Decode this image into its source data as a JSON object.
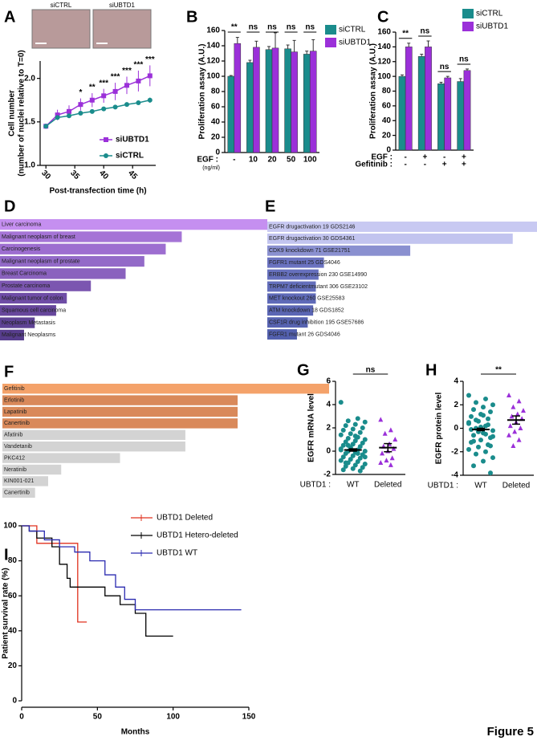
{
  "figure_label": "Figure 5",
  "chart_data": [
    {
      "type": "line",
      "panel": "A",
      "images": [
        "siCTRL",
        "siUBTD1"
      ],
      "y_label": [
        "Cell number",
        "(number of nuclei relative to T=0)"
      ],
      "x_label": "Post-transfection time (h)",
      "x": [
        30,
        32,
        34,
        36,
        38,
        40,
        42,
        44,
        46,
        48
      ],
      "xlim": [
        29,
        49
      ],
      "xticks": [
        30,
        35,
        40,
        45
      ],
      "ylim": [
        1.0,
        2.2
      ],
      "yticks": [
        {
          "value": 1.0,
          "label": "1.0"
        },
        {
          "value": 1.5,
          "label": "1.5"
        },
        {
          "value": 2.0,
          "label": "2.0"
        }
      ],
      "series": [
        {
          "name": "siUBTD1",
          "color": "#9b30d9",
          "marker": "square",
          "values": [
            1.45,
            1.58,
            1.62,
            1.7,
            1.75,
            1.8,
            1.85,
            1.92,
            1.97,
            2.03
          ],
          "errors": [
            0.03,
            0.06,
            0.07,
            0.07,
            0.08,
            0.08,
            0.1,
            0.1,
            0.12,
            0.12
          ],
          "significance": [
            null,
            null,
            null,
            "*",
            "**",
            "***",
            "***",
            "***",
            "***",
            "***"
          ]
        },
        {
          "name": "siCTRL",
          "color": "#1a8c8c",
          "marker": "circle",
          "values": [
            1.45,
            1.55,
            1.57,
            1.6,
            1.62,
            1.65,
            1.67,
            1.7,
            1.72,
            1.75
          ],
          "errors": [
            0.02,
            0.02,
            0.02,
            0.02,
            0.02,
            0.02,
            0.02,
            0.02,
            0.02,
            0.03
          ]
        }
      ]
    },
    {
      "type": "bar",
      "panel": "B",
      "y_label": "Proliferation assay (A.U.)",
      "x_prefix": "EGF :",
      "x_unit": "(ng/ml)",
      "categories": [
        "-",
        "10",
        "20",
        "50",
        "100"
      ],
      "ylim": [
        0,
        160
      ],
      "yticks": [
        0,
        20,
        40,
        60,
        80,
        100,
        120,
        140,
        160
      ],
      "significance": [
        "**",
        "ns",
        "ns",
        "ns",
        "ns"
      ],
      "series": [
        {
          "name": "siCTRL",
          "color": "#1a8c8c",
          "values": [
            100,
            118,
            135,
            136,
            129
          ],
          "errors": [
            1,
            3,
            4,
            5,
            4
          ]
        },
        {
          "name": "siUBTD1",
          "color": "#9b30d9",
          "values": [
            143,
            138,
            137,
            132,
            133
          ],
          "errors": [
            8,
            8,
            20,
            15,
            15
          ]
        }
      ]
    },
    {
      "type": "bar",
      "panel": "C",
      "y_label": "Proliferation assay (A.U.)",
      "category_rows": [
        {
          "name": "EGF :",
          "categories": [
            "-",
            "+",
            "-",
            "+"
          ]
        },
        {
          "name": "Gefitinib :",
          "categories": [
            "-",
            "-",
            "+",
            "+"
          ]
        }
      ],
      "ylim": [
        0,
        160
      ],
      "yticks": [
        0,
        20,
        40,
        60,
        80,
        100,
        120,
        140,
        160
      ],
      "significance": [
        "**",
        "ns",
        "ns",
        "ns"
      ],
      "series": [
        {
          "name": "siCTRL",
          "color": "#1a8c8c",
          "values": [
            100,
            127,
            90,
            93
          ],
          "errors": [
            2,
            3,
            2,
            4
          ]
        },
        {
          "name": "siUBTD1",
          "color": "#9b30d9",
          "values": [
            140,
            140,
            98,
            108
          ],
          "errors": [
            5,
            8,
            2,
            2
          ]
        }
      ]
    },
    {
      "type": "barh",
      "panel": "D",
      "categories": [
        "Liver carcinoma",
        "Malignant neoplasm of breast",
        "Carcinogenesis",
        "Malignant neoplasm of prostate",
        "Breast Carcinoma",
        "Prostate carcinoma",
        "Malignant tumor of colon",
        "Squamous cell carcinoma",
        "Neoplasm Metastasis",
        "Malignant Neoplasms"
      ],
      "values": [
        100,
        68,
        62,
        54,
        47,
        34,
        25,
        21,
        13,
        9
      ],
      "colors": [
        "#c58ff0",
        "#a574d6",
        "#9d6ed0",
        "#936ac8",
        "#8a62be",
        "#7b56b0",
        "#6f4da6",
        "#67479c",
        "#5e4294",
        "#573d8d"
      ]
    },
    {
      "type": "barh",
      "panel": "E",
      "categories": [
        "EGFR drugactivation 19 GDS2146",
        "EGFR drugactivation 30 GDS4361",
        "CDK9 knockdown 71 GSE21751",
        "FGFR1 mutant 25 GDS4046",
        "ERBB2 overexpression 230 GSE14990",
        "TRPM7 deficientmutant 306 GSE23102",
        "MET knockout 260 GSE25583",
        "ATM knockdown 18 GDS1852",
        "CSF1R drug inhibition 195 GSE57686",
        "FGFR1 mutant 26 GDS4046"
      ],
      "values": [
        100,
        91,
        53,
        21,
        19,
        18,
        18,
        17,
        15,
        11
      ],
      "colors": [
        "#c8c9f2",
        "#c2c4ef",
        "#8a90d0",
        "#6a72c0",
        "#6670bd",
        "#636ebb",
        "#5f6ab8",
        "#5b66b4",
        "#5763b1",
        "#5360ae"
      ]
    },
    {
      "type": "barh",
      "panel": "F",
      "categories": [
        "Gefitinib",
        "Erlotinib",
        "Lapatinib",
        "Canertinib",
        "Afatinib",
        "Vandetanib",
        "PKC412",
        "Neratinib",
        "KIN001-021",
        "Canertinib"
      ],
      "values": [
        100,
        72,
        72,
        72,
        56,
        56,
        36,
        18,
        14,
        10
      ],
      "colors": [
        "#f4a26a",
        "#d9895a",
        "#d9895a",
        "#d9895a",
        "#d3d3d3",
        "#d3d3d3",
        "#d3d3d3",
        "#d3d3d3",
        "#d3d3d3",
        "#d3d3d3"
      ]
    },
    {
      "type": "strip",
      "panel": "G",
      "y_label": "EGFR mRNA level",
      "x_prefix": "UBTD1 :",
      "significance": "ns",
      "categories": [
        "WT",
        "Deleted"
      ],
      "ylim": [
        -2,
        6
      ],
      "yticks": [
        -2,
        0,
        2,
        4,
        6
      ],
      "groups": [
        {
          "color": "#1a8c8c",
          "marker": "circle",
          "mean": 0.1,
          "error": 0.1,
          "values": [
            4.2,
            2.8,
            2.6,
            2.5,
            2.3,
            2.2,
            2.0,
            1.9,
            1.8,
            1.6,
            1.5,
            1.4,
            1.2,
            1.1,
            1.0,
            0.9,
            0.8,
            0.7,
            0.6,
            0.5,
            0.4,
            0.3,
            0.2,
            0.1,
            0.0,
            0.0,
            -0.1,
            -0.2,
            -0.3,
            -0.4,
            -0.5,
            -0.6,
            -0.7,
            -0.8,
            -0.9,
            -1.0,
            -1.1,
            -1.2,
            -1.3,
            -1.4,
            -1.5,
            -1.6,
            -1.7,
            0.3,
            0.1,
            -0.2,
            0.5,
            -0.5,
            1.3,
            -1.0
          ]
        },
        {
          "color": "#9b30d9",
          "marker": "triangle",
          "mean": 0.3,
          "error": 0.35,
          "values": [
            2.7,
            1.8,
            1.5,
            1.0,
            0.6,
            0.4,
            0.2,
            0.0,
            -0.2,
            -0.6,
            -0.8,
            -1.0,
            -1.2
          ]
        }
      ]
    },
    {
      "type": "strip",
      "panel": "H",
      "y_label": "EGFR protein level",
      "x_prefix": "UBTD1 :",
      "significance": "**",
      "categories": [
        "WT",
        "Deleted"
      ],
      "ylim": [
        -4,
        4
      ],
      "yticks": [
        -4,
        -2,
        0,
        2,
        4
      ],
      "groups": [
        {
          "color": "#1a8c8c",
          "marker": "circle",
          "mean": -0.1,
          "error": 0.1,
          "values": [
            2.8,
            2.5,
            2.2,
            2.0,
            1.8,
            1.6,
            1.4,
            1.2,
            1.0,
            0.8,
            0.6,
            0.4,
            0.2,
            0.0,
            -0.2,
            -0.4,
            -0.6,
            -0.8,
            -1.0,
            -1.2,
            -1.4,
            -1.6,
            -1.8,
            -2.0,
            -2.2,
            -2.5,
            -2.8,
            -3.2,
            -3.8,
            0.1,
            -0.1,
            0.3,
            -0.3,
            0.5,
            -0.5,
            0.7,
            -0.7,
            1.1,
            -1.1,
            -1.5
          ]
        },
        {
          "color": "#9b30d9",
          "marker": "triangle",
          "mean": 0.7,
          "error": 0.35,
          "values": [
            2.8,
            2.3,
            1.8,
            1.5,
            1.2,
            1.0,
            0.8,
            0.5,
            0.2,
            0.0,
            -0.3,
            -0.6,
            -1.0,
            -1.5
          ]
        }
      ]
    },
    {
      "type": "step",
      "panel": "I",
      "y_label": "Patient survival rate (%)",
      "x_label": "Months",
      "xlim": [
        0,
        150
      ],
      "xticks": [
        0,
        50,
        100,
        150
      ],
      "ylim": [
        0,
        100
      ],
      "yticks": [
        0,
        20,
        40,
        60,
        80,
        100
      ],
      "series": [
        {
          "name": "UBTD1 Deleted",
          "color": "#e0301e",
          "x": [
            0,
            10,
            37,
            43
          ],
          "values": [
            100,
            90,
            45,
            45
          ]
        },
        {
          "name": "UBTD1 Hetero-deleted",
          "color": "#000000",
          "x": [
            0,
            5,
            10,
            20,
            25,
            30,
            32,
            45,
            55,
            65,
            75,
            82,
            100
          ],
          "values": [
            100,
            97,
            93,
            88,
            78,
            70,
            65,
            65,
            60,
            55,
            50,
            37,
            37
          ]
        },
        {
          "name": "UBTD1 WT",
          "color": "#2b2bb0",
          "x": [
            0,
            5,
            15,
            25,
            35,
            45,
            55,
            62,
            68,
            75,
            145
          ],
          "values": [
            100,
            97,
            92,
            88,
            85,
            80,
            72,
            65,
            58,
            52,
            52
          ]
        }
      ]
    }
  ]
}
